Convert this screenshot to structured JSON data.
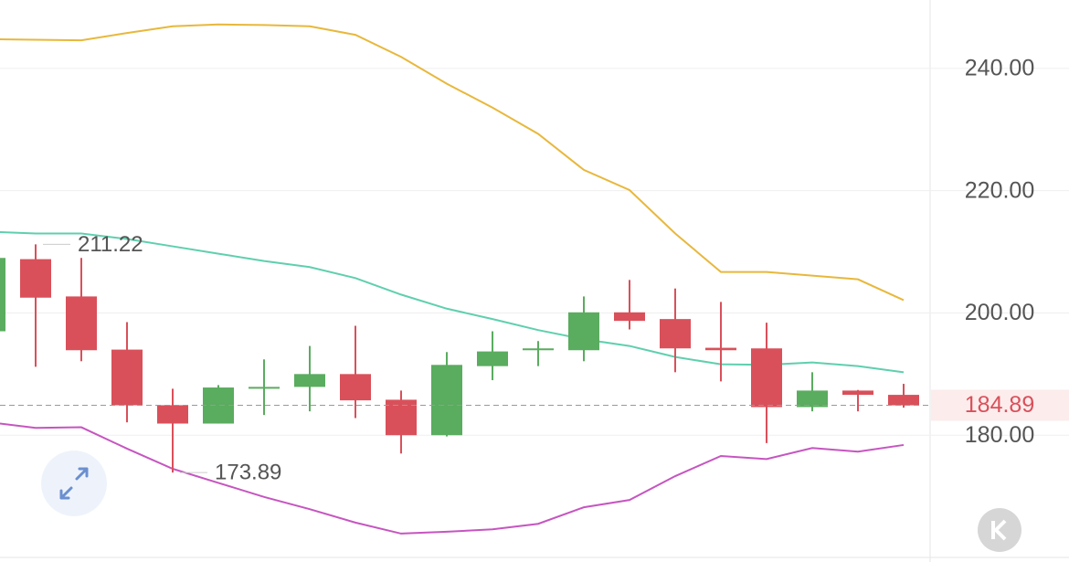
{
  "chart_data": {
    "type": "candlestick",
    "open": [
      197.0,
      208.8,
      202.7,
      194.0,
      184.9,
      181.9,
      187.6,
      187.9,
      190.0,
      185.8,
      180.0,
      191.3,
      193.9,
      193.9,
      200.1,
      199.0,
      194.3,
      194.2,
      184.6,
      187.3,
      186.6
    ],
    "high": [
      211.0,
      211.22,
      209.0,
      198.5,
      187.6,
      188.2,
      192.4,
      194.6,
      197.9,
      187.3,
      193.6,
      197.0,
      195.4,
      202.7,
      205.4,
      204.0,
      201.8,
      198.4,
      190.3,
      187.4,
      188.4
    ],
    "low": [
      196.0,
      191.2,
      192.1,
      182.1,
      173.89,
      181.9,
      183.3,
      183.9,
      182.8,
      177.0,
      179.8,
      189.0,
      191.3,
      192.1,
      197.3,
      190.3,
      188.8,
      178.7,
      183.9,
      183.9,
      184.5
    ],
    "close": [
      209.0,
      202.5,
      193.9,
      184.9,
      181.9,
      187.8,
      187.9,
      190.0,
      185.7,
      180.0,
      191.5,
      193.7,
      194.2,
      200.1,
      198.7,
      194.2,
      193.9,
      184.6,
      187.3,
      186.6,
      184.89
    ],
    "up_color": "#5aac5f",
    "down_color": "#d9505a",
    "bands": [
      {
        "color": "#e8b83c",
        "values": [
          244.8,
          244.7,
          244.6,
          245.8,
          246.9,
          247.2,
          247.1,
          246.9,
          245.5,
          241.9,
          237.5,
          233.6,
          229.3,
          223.4,
          220.1,
          213.0,
          206.7,
          206.7,
          206.1,
          205.5,
          202.1
        ]
      },
      {
        "color": "#5fcfae",
        "values": [
          213.3,
          213.0,
          213.0,
          212.1,
          210.9,
          209.7,
          208.5,
          207.5,
          205.7,
          203.0,
          200.7,
          199.0,
          197.2,
          195.7,
          194.6,
          192.8,
          191.6,
          191.5,
          191.9,
          191.3,
          190.3
        ]
      },
      {
        "color": "#c655c0",
        "values": [
          182.1,
          181.2,
          181.3,
          177.8,
          174.5,
          172.2,
          169.9,
          167.9,
          165.7,
          163.9,
          164.2,
          164.6,
          165.5,
          168.2,
          169.4,
          173.3,
          176.6,
          176.1,
          177.9,
          177.3,
          178.4
        ]
      }
    ],
    "ylim": [
      160,
      251.2
    ],
    "yticks": [
      {
        "value": 180,
        "label": "180.00"
      },
      {
        "value": 200,
        "label": "200.00"
      },
      {
        "value": 220,
        "label": "220.00"
      },
      {
        "value": 240,
        "label": "240.00"
      }
    ],
    "grid": true
  }
}
